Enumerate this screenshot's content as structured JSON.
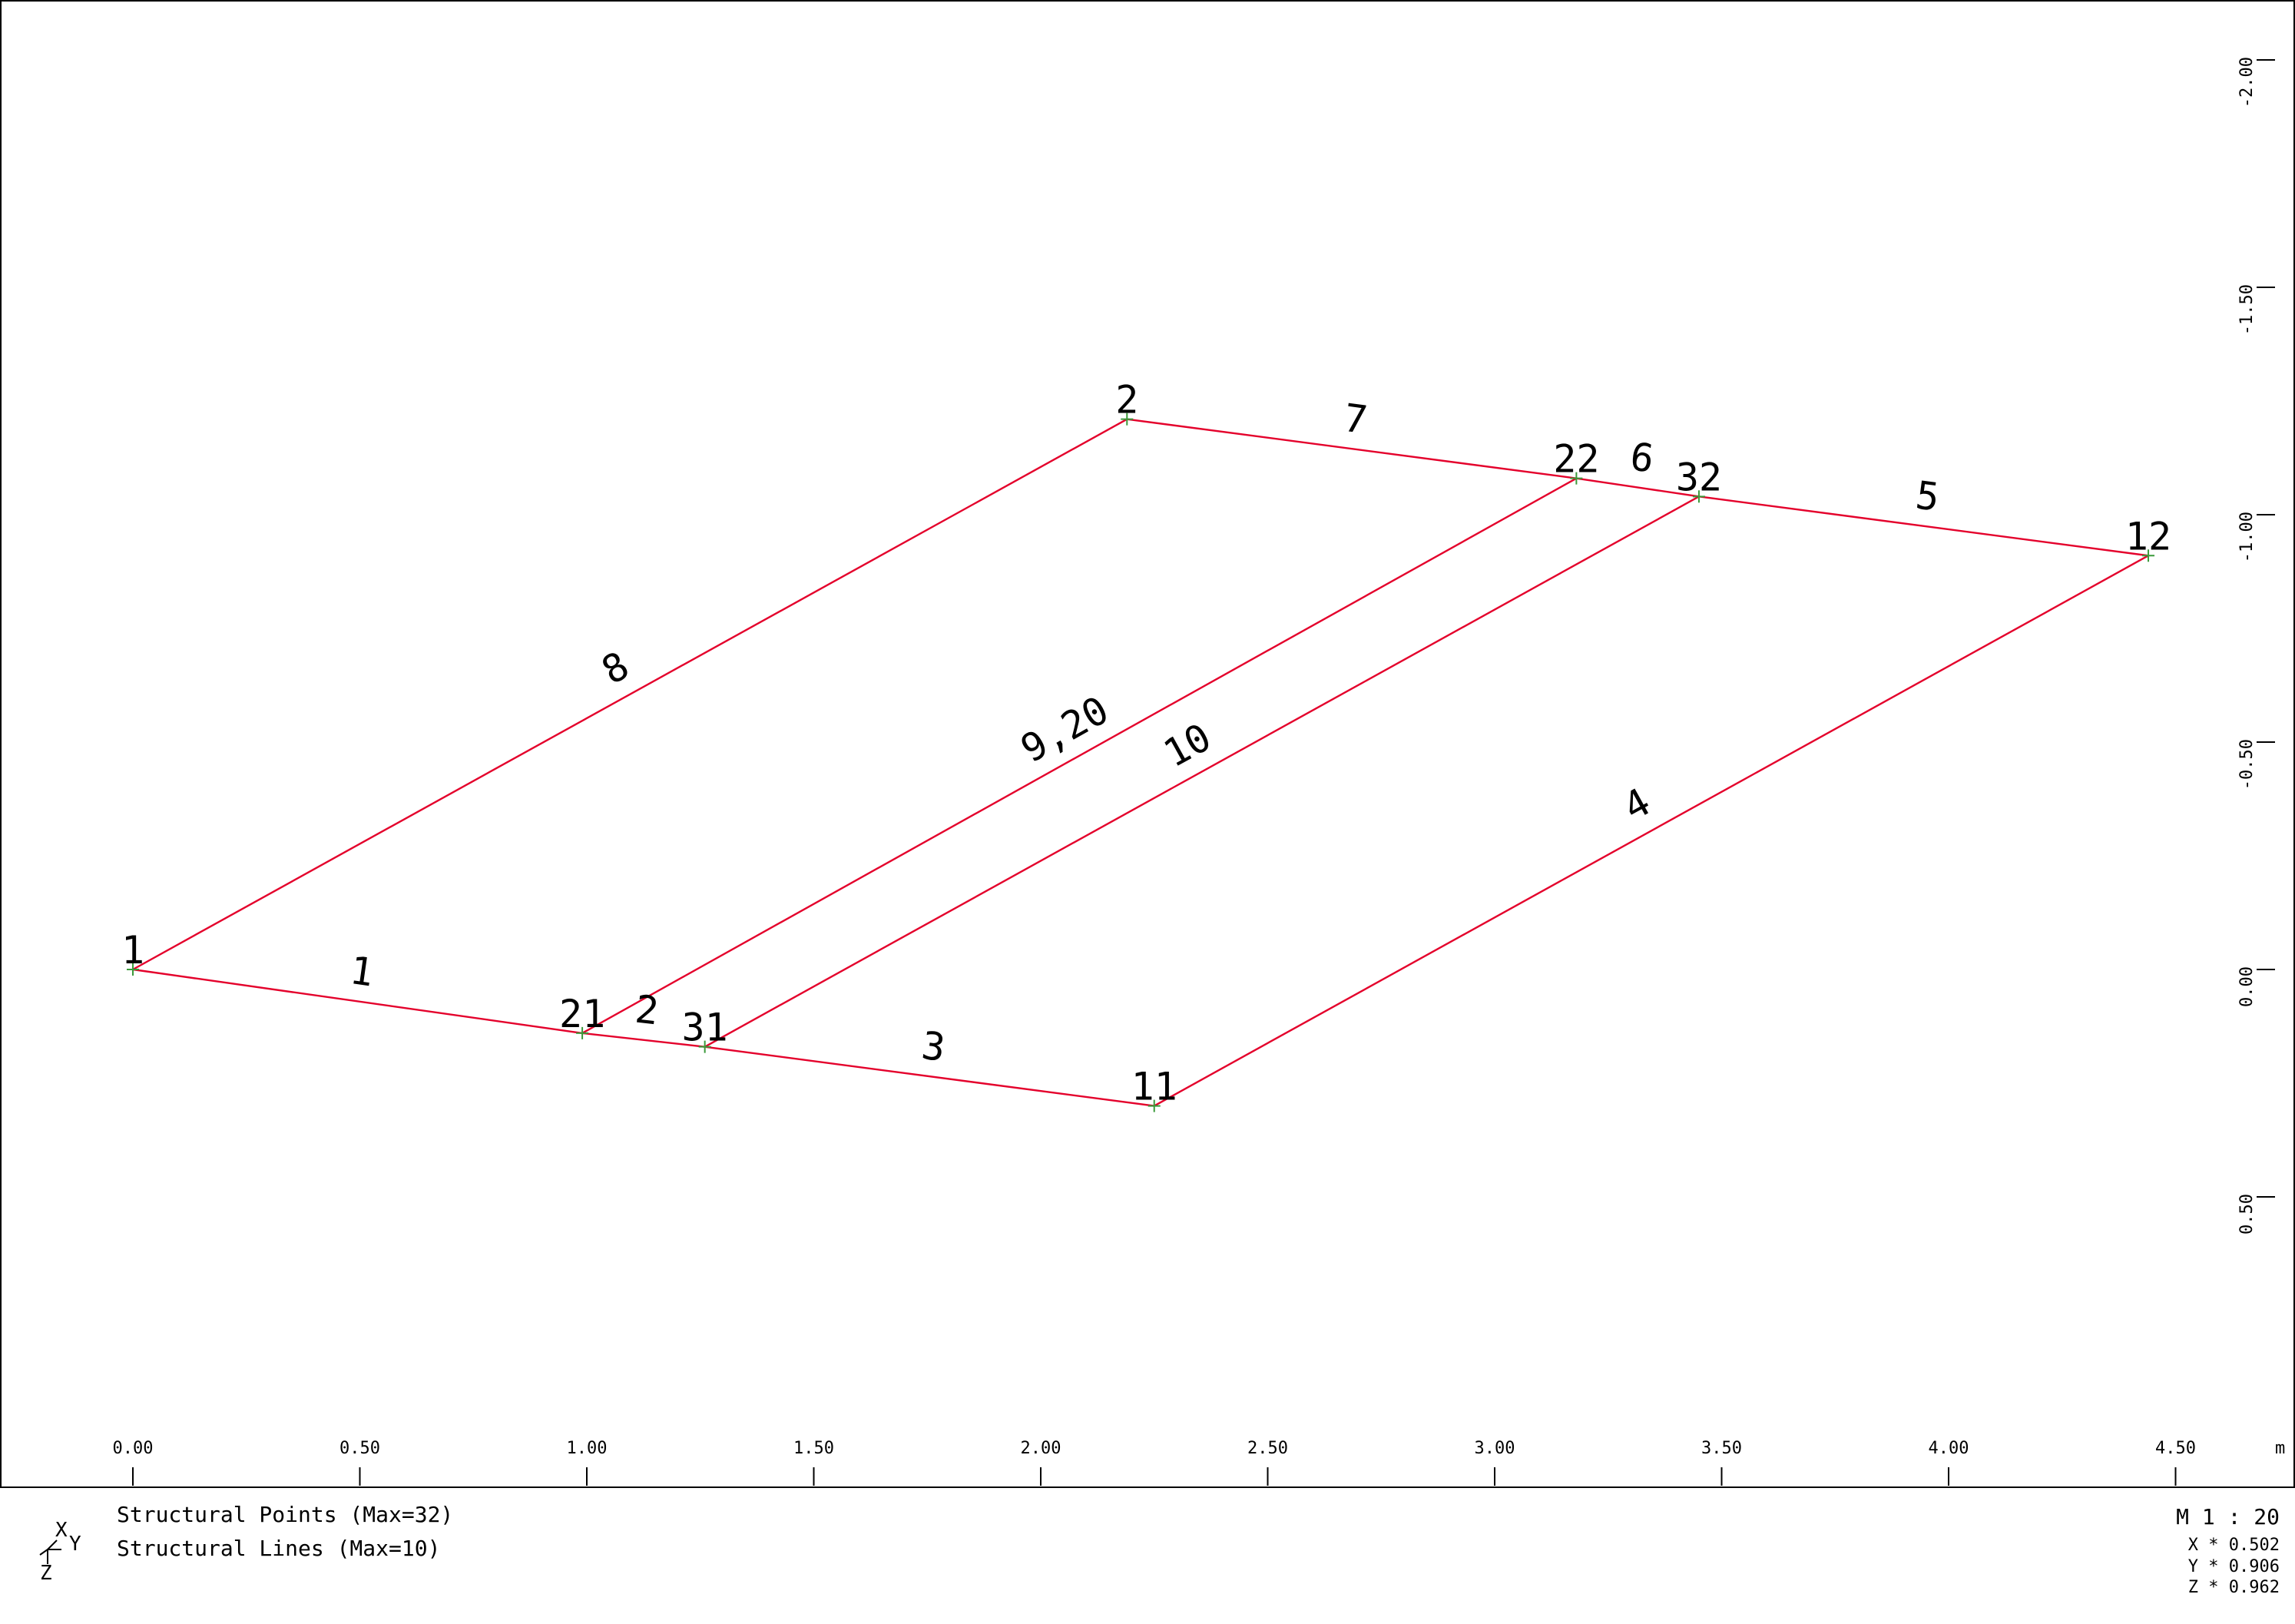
{
  "points": [
    {
      "id": "1",
      "label": "1",
      "x": 0.0,
      "y": 0.0
    },
    {
      "id": "2",
      "label": "2",
      "x": 2.19,
      "y": -1.21
    },
    {
      "id": "21",
      "label": "21",
      "x": 0.99,
      "y": 0.14
    },
    {
      "id": "22",
      "label": "22",
      "x": 3.18,
      "y": -1.08
    },
    {
      "id": "31",
      "label": "31",
      "x": 1.26,
      "y": 0.17
    },
    {
      "id": "32",
      "label": "32",
      "x": 3.45,
      "y": -1.04
    },
    {
      "id": "11",
      "label": "11",
      "x": 2.25,
      "y": 0.3
    },
    {
      "id": "12",
      "label": "12",
      "x": 4.44,
      "y": -0.91
    }
  ],
  "lines": [
    {
      "label": "1",
      "from": "1",
      "to": "21"
    },
    {
      "label": "2",
      "from": "21",
      "to": "31"
    },
    {
      "label": "3",
      "from": "31",
      "to": "11"
    },
    {
      "label": "4",
      "from": "11",
      "to": "12"
    },
    {
      "label": "5",
      "from": "32",
      "to": "12"
    },
    {
      "label": "6",
      "from": "22",
      "to": "32"
    },
    {
      "label": "7",
      "from": "2",
      "to": "22"
    },
    {
      "label": "8",
      "from": "1",
      "to": "2"
    },
    {
      "label": "9,20",
      "from": "21",
      "to": "22"
    },
    {
      "label": "10",
      "from": "31",
      "to": "32"
    }
  ],
  "x_axis": {
    "ticks": [
      "0.00",
      "0.50",
      "1.00",
      "1.50",
      "2.00",
      "2.50",
      "3.00",
      "3.50",
      "4.00",
      "4.50"
    ],
    "tick_values": [
      0,
      0.5,
      1,
      1.5,
      2,
      2.5,
      3,
      3.5,
      4,
      4.5
    ],
    "unit": "m"
  },
  "y_axis": {
    "ticks": [
      "-2.00",
      "-1.50",
      "-1.00",
      "-0.50",
      "0.00",
      "0.50"
    ],
    "tick_values": [
      -2,
      -1.5,
      -1,
      -0.5,
      0,
      0.5
    ]
  },
  "legend": {
    "points": "Structural Points (Max=32)",
    "lines": "Structural Lines (Max=10)"
  },
  "triad": {
    "x": "X",
    "y": "Y",
    "z": "Z"
  },
  "scale": {
    "ratio": "M 1 : 20",
    "x": "X * 0.502",
    "y": "Y * 0.906",
    "z": "Z * 0.962"
  },
  "colors": {
    "line": "#e4002b",
    "point": "#3a9a3a"
  }
}
